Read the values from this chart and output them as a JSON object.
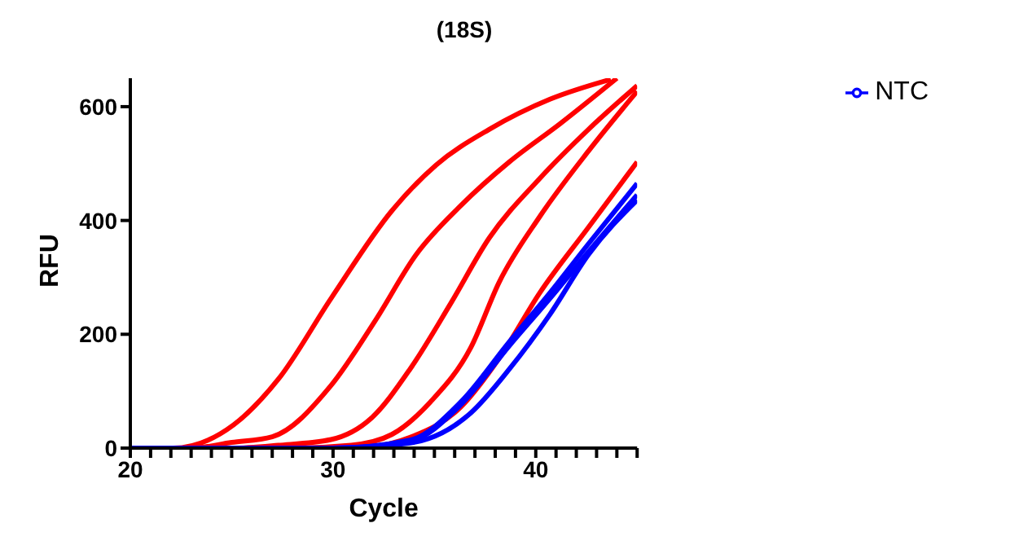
{
  "chart_data": {
    "type": "line",
    "title": "(18S)",
    "xlabel": "Cycle",
    "ylabel": "RFU",
    "xlim": [
      20,
      45
    ],
    "ylim": [
      0,
      650
    ],
    "xticks": [
      20,
      {
        "value": 21,
        "label": null
      },
      {
        "value": 22,
        "label": null
      },
      {
        "value": 23,
        "label": null
      },
      {
        "value": 24,
        "label": null
      },
      {
        "value": 25,
        "label": null
      },
      {
        "value": 26,
        "label": null
      },
      {
        "value": 27,
        "label": null
      },
      {
        "value": 28,
        "label": null
      },
      {
        "value": 29,
        "label": null
      },
      30,
      {
        "value": 31,
        "label": null
      },
      {
        "value": 32,
        "label": null
      },
      {
        "value": 33,
        "label": null
      },
      {
        "value": 34,
        "label": null
      },
      {
        "value": 35,
        "label": null
      },
      {
        "value": 36,
        "label": null
      },
      {
        "value": 37,
        "label": null
      },
      {
        "value": 38,
        "label": null
      },
      {
        "value": 39,
        "label": null
      },
      40,
      {
        "value": 41,
        "label": null
      },
      {
        "value": 42,
        "label": null
      },
      {
        "value": 43,
        "label": null
      },
      {
        "value": 44,
        "label": null
      },
      {
        "value": 45,
        "label": null
      }
    ],
    "yticks": [
      0,
      200,
      400,
      600
    ],
    "grid": false,
    "legend": "top right",
    "marker": "none",
    "line_style": "solid",
    "series": [
      {
        "color": "#ff0000",
        "x": [
          20,
          22.1,
          25.1,
          27.3,
          29.9,
          32.9,
          35.1,
          37.7,
          40.7,
          43.7
        ],
        "values": [
          0,
          0,
          41,
          121,
          263,
          417,
          498,
          560,
          613,
          648
        ]
      },
      {
        "color": "#ff0000",
        "x": [
          20,
          23,
          25,
          27,
          29.9,
          32.1,
          34.1,
          36.3,
          38.7,
          41.2,
          44
        ],
        "values": [
          0,
          0,
          10,
          20,
          110,
          225,
          340,
          426,
          503,
          570,
          650
        ]
      },
      {
        "color": "#ff0000",
        "x": [
          20,
          25,
          27.3,
          29.9,
          31.9,
          33.8,
          35.8,
          37.7,
          40.2,
          42.6,
          45
        ],
        "values": [
          0,
          0,
          5,
          15,
          53,
          139,
          254,
          369,
          474,
          560,
          637
        ]
      },
      {
        "color": "#ff0000",
        "x": [
          20,
          28,
          30.9,
          32.9,
          34.8,
          36.8,
          38.2,
          40.2,
          42.6,
          45
        ],
        "values": [
          0,
          0,
          5,
          24,
          81,
          177,
          292,
          407,
          522,
          627
        ]
      },
      {
        "color": "#ff0000",
        "x": [
          20,
          29,
          31.9,
          33.8,
          36.3,
          38.2,
          40.2,
          42.6,
          45
        ],
        "values": [
          0,
          0,
          3,
          19,
          72,
          158,
          273,
          388,
          503
        ]
      },
      {
        "name": "NTC",
        "color": "#0000ff",
        "x": [
          20,
          30,
          33.8,
          36.3,
          38.7,
          40.7,
          42.6,
          45
        ],
        "values": [
          0,
          0,
          14,
          81,
          187,
          273,
          359,
          465
        ]
      },
      {
        "color": "#0000ff",
        "x": [
          20,
          30,
          33.8,
          36.3,
          38.7,
          40.7,
          42.6,
          45
        ],
        "values": [
          0,
          0,
          12,
          76,
          180,
          263,
          345,
          445
        ]
      },
      {
        "color": "#0000ff",
        "x": [
          20,
          30,
          33.8,
          36.8,
          38.7,
          40.7,
          42.6,
          45
        ],
        "values": [
          0,
          0,
          9,
          62,
          139,
          235,
          340,
          436
        ]
      }
    ]
  }
}
